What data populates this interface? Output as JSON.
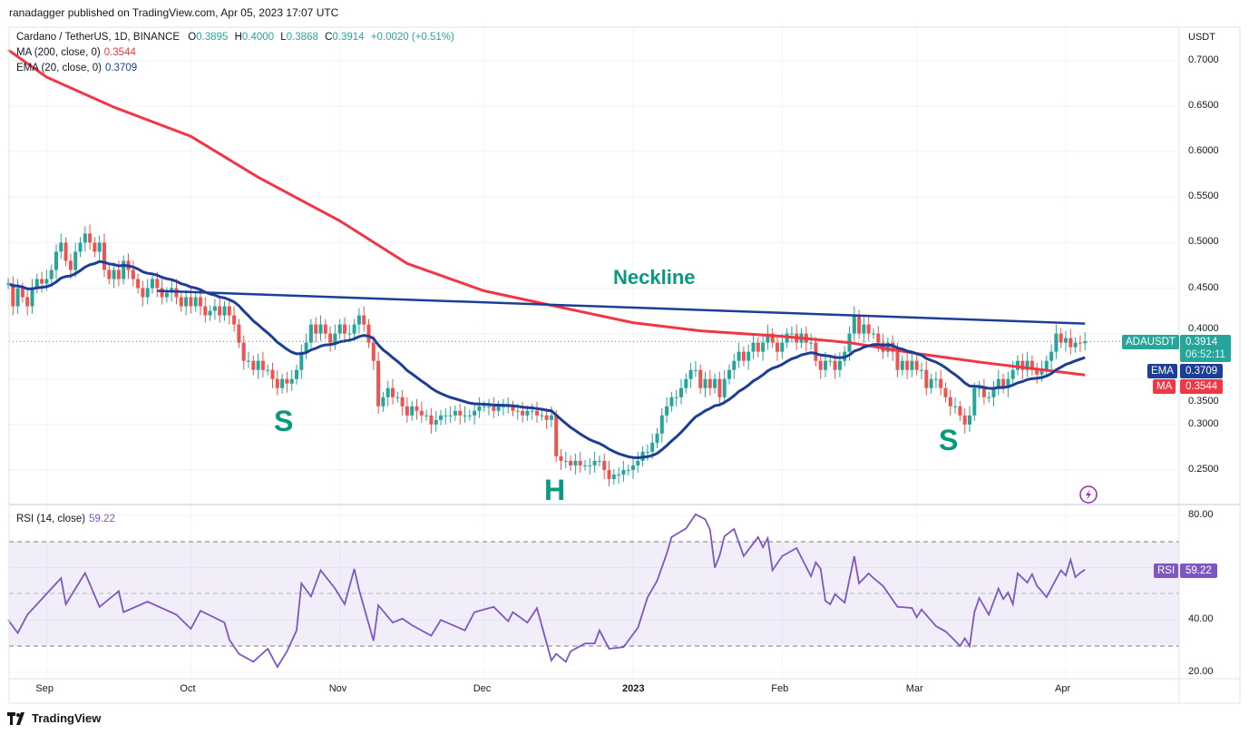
{
  "published": "ranadagger published on TradingView.com, Apr 05, 2023 17:07 UTC",
  "legend": {
    "symbol": "Cardano / TetherUS, 1D, BINANCE",
    "o_label": "O",
    "o": "0.3895",
    "h_label": "H",
    "h": "0.4000",
    "l_label": "L",
    "l": "0.3868",
    "c_label": "C",
    "c": "0.3914",
    "change": "+0.0020 (+0.51%)",
    "ma_label": "MA (200, close, 0)",
    "ma_value": "0.3544",
    "ema_label": "EMA (20, close, 0)",
    "ema_value": "0.3709",
    "rsi_label": "RSI (14, close)",
    "rsi_value": "59.22"
  },
  "price_axis": {
    "unit": "USDT",
    "ticks": [
      "0.7000",
      "0.6500",
      "0.6000",
      "0.5500",
      "0.5000",
      "0.4500",
      "0.4000",
      "0.3500",
      "0.3000",
      "0.2500"
    ]
  },
  "rsi_axis": {
    "ticks": [
      "80.00",
      "40.00",
      "20.00"
    ]
  },
  "time_axis": {
    "ticks": [
      "Sep",
      "Oct",
      "Nov",
      "Dec",
      "2023",
      "Feb",
      "Mar",
      "Apr"
    ]
  },
  "tags": {
    "symbol": "ADAUSDT",
    "price": "0.3914",
    "countdown": "06:52:11",
    "ema_label": "EMA",
    "ema": "0.3709",
    "ma_label": "MA",
    "ma": "0.3544",
    "rsi_label": "RSI",
    "rsi": "59.22"
  },
  "annotations": {
    "neckline": "Neckline",
    "left_shoulder": "S",
    "head": "H",
    "right_shoulder": "S"
  },
  "footer": {
    "brand": "TradingView"
  },
  "colors": {
    "up": "#26a69a",
    "down": "#ef5350",
    "ema": "#1c3f95",
    "ma": "#f23645",
    "rsi": "#7e57c2",
    "annotation": "#089981",
    "neckline": "#1c3f95"
  },
  "chart_data": [
    {
      "type": "candlestick",
      "title": "Cardano / TetherUS, 1D, BINANCE",
      "ylabel": "USDT",
      "ylim": [
        0.22,
        0.72
      ],
      "grid": true,
      "candles_by_month": [
        {
          "month": "2022-08",
          "start_day": 24,
          "closes": [
            0.455,
            0.43,
            0.45,
            0.44,
            0.43,
            0.45,
            0.46,
            0.455
          ]
        },
        {
          "month": "2022-09",
          "start_day": 1,
          "closes": [
            0.46,
            0.47,
            0.49,
            0.5,
            0.48,
            0.47,
            0.49,
            0.5,
            0.51,
            0.5,
            0.49,
            0.5,
            0.47,
            0.46,
            0.47,
            0.46,
            0.48,
            0.47,
            0.46,
            0.45,
            0.44,
            0.45,
            0.46,
            0.45,
            0.44,
            0.445,
            0.45,
            0.44,
            0.43,
            0.44
          ]
        },
        {
          "month": "2022-10",
          "start_day": 1,
          "closes": [
            0.43,
            0.44,
            0.43,
            0.42,
            0.425,
            0.43,
            0.42,
            0.43,
            0.42,
            0.41,
            0.39,
            0.37,
            0.37,
            0.36,
            0.37,
            0.36,
            0.36,
            0.35,
            0.34,
            0.35,
            0.345,
            0.35,
            0.36,
            0.38,
            0.39,
            0.41,
            0.4,
            0.41,
            0.4,
            0.39,
            0.4
          ]
        },
        {
          "month": "2022-11",
          "start_day": 1,
          "closes": [
            0.41,
            0.4,
            0.4,
            0.41,
            0.42,
            0.41,
            0.39,
            0.37,
            0.32,
            0.33,
            0.34,
            0.33,
            0.33,
            0.32,
            0.31,
            0.32,
            0.315,
            0.31,
            0.31,
            0.3,
            0.305,
            0.31,
            0.31,
            0.31,
            0.315,
            0.31,
            0.31,
            0.31,
            0.315,
            0.32
          ]
        },
        {
          "month": "2022-12",
          "start_day": 1,
          "closes": [
            0.32,
            0.32,
            0.315,
            0.32,
            0.32,
            0.32,
            0.315,
            0.315,
            0.31,
            0.315,
            0.315,
            0.31,
            0.31,
            0.305,
            0.31,
            0.265,
            0.26,
            0.26,
            0.255,
            0.26,
            0.255,
            0.255,
            0.255,
            0.26,
            0.26,
            0.25,
            0.24,
            0.245,
            0.245,
            0.25,
            0.25
          ]
        },
        {
          "month": "2023-01",
          "start_day": 1,
          "closes": [
            0.255,
            0.26,
            0.27,
            0.27,
            0.28,
            0.29,
            0.31,
            0.32,
            0.33,
            0.33,
            0.34,
            0.35,
            0.36,
            0.36,
            0.34,
            0.35,
            0.34,
            0.35,
            0.33,
            0.35,
            0.36,
            0.37,
            0.38,
            0.37,
            0.38,
            0.39,
            0.38,
            0.39,
            0.4,
            0.39,
            0.38
          ]
        },
        {
          "month": "2023-02",
          "start_day": 1,
          "closes": [
            0.39,
            0.4,
            0.4,
            0.39,
            0.4,
            0.39,
            0.39,
            0.37,
            0.36,
            0.37,
            0.37,
            0.36,
            0.37,
            0.38,
            0.4,
            0.42,
            0.4,
            0.41,
            0.4,
            0.4,
            0.39,
            0.38,
            0.39,
            0.38,
            0.36,
            0.37,
            0.36,
            0.37
          ]
        },
        {
          "month": "2023-03",
          "start_day": 1,
          "closes": [
            0.36,
            0.36,
            0.34,
            0.35,
            0.35,
            0.34,
            0.33,
            0.32,
            0.32,
            0.31,
            0.3,
            0.31,
            0.34,
            0.34,
            0.33,
            0.33,
            0.34,
            0.35,
            0.34,
            0.35,
            0.36,
            0.37,
            0.36,
            0.37,
            0.36,
            0.355,
            0.36,
            0.37,
            0.38,
            0.4,
            0.39
          ]
        },
        {
          "month": "2023-04",
          "start_day": 1,
          "closes": [
            0.395,
            0.385,
            0.39,
            0.3895,
            0.3914
          ]
        }
      ],
      "ma200": [
        [
          "2022-08-24",
          0.712
        ],
        [
          "2022-09-01",
          0.682
        ],
        [
          "2022-09-15",
          0.649
        ],
        [
          "2022-10-01",
          0.617
        ],
        [
          "2022-10-15",
          0.572
        ],
        [
          "2022-11-01",
          0.524
        ],
        [
          "2022-11-15",
          0.477
        ],
        [
          "2022-12-01",
          0.447
        ],
        [
          "2022-12-15",
          0.431
        ],
        [
          "2023-01-01",
          0.412
        ],
        [
          "2023-01-15",
          0.403
        ],
        [
          "2023-02-01",
          0.397
        ],
        [
          "2023-02-15",
          0.39
        ],
        [
          "2023-03-01",
          0.378
        ],
        [
          "2023-03-15",
          0.368
        ],
        [
          "2023-04-05",
          0.3544
        ]
      ],
      "neckline": [
        [
          "2022-09-24",
          0.447
        ],
        [
          "2023-04-05",
          0.411
        ]
      ],
      "last_price": 0.3914
    },
    {
      "type": "line",
      "title": "RSI (14, close)",
      "ylim": [
        18,
        84
      ],
      "bands": {
        "upper": 70,
        "middle": 50,
        "lower": 30
      },
      "points": [
        [
          "2022-08-24",
          40
        ],
        [
          "2022-08-26",
          35
        ],
        [
          "2022-08-28",
          42
        ],
        [
          "2022-09-04",
          56
        ],
        [
          "2022-09-05",
          46
        ],
        [
          "2022-09-09",
          58
        ],
        [
          "2022-09-12",
          45
        ],
        [
          "2022-09-16",
          51
        ],
        [
          "2022-09-17",
          43
        ],
        [
          "2022-09-22",
          47
        ],
        [
          "2022-09-28",
          42
        ],
        [
          "2022-10-01",
          36.6
        ],
        [
          "2022-10-03",
          43.5
        ],
        [
          "2022-10-08",
          39
        ],
        [
          "2022-10-09",
          32.5
        ],
        [
          "2022-10-11",
          27
        ],
        [
          "2022-10-14",
          24
        ],
        [
          "2022-10-17",
          29
        ],
        [
          "2022-10-19",
          22
        ],
        [
          "2022-10-21",
          28
        ],
        [
          "2022-10-23",
          36
        ],
        [
          "2022-10-24",
          54
        ],
        [
          "2022-10-26",
          49
        ],
        [
          "2022-10-28",
          59
        ],
        [
          "2022-10-31",
          52
        ],
        [
          "2022-11-02",
          46
        ],
        [
          "2022-11-04",
          59.5
        ],
        [
          "2022-11-05",
          51.5
        ],
        [
          "2022-11-08",
          32
        ],
        [
          "2022-11-09",
          45.6
        ],
        [
          "2022-11-12",
          39
        ],
        [
          "2022-11-14",
          40.5
        ],
        [
          "2022-11-16",
          38
        ],
        [
          "2022-11-20",
          34
        ],
        [
          "2022-11-22",
          40
        ],
        [
          "2022-11-27",
          36
        ],
        [
          "2022-11-29",
          43
        ],
        [
          "2022-12-03",
          45
        ],
        [
          "2022-12-06",
          39.5
        ],
        [
          "2022-12-07",
          43
        ],
        [
          "2022-12-10",
          39
        ],
        [
          "2022-12-12",
          44.5
        ],
        [
          "2022-12-15",
          24.5
        ],
        [
          "2022-12-16",
          27
        ],
        [
          "2022-12-18",
          24
        ],
        [
          "2022-12-19",
          28
        ],
        [
          "2022-12-22",
          31
        ],
        [
          "2022-12-24",
          31
        ],
        [
          "2022-12-25",
          36
        ],
        [
          "2022-12-27",
          29
        ],
        [
          "2022-12-30",
          29.6
        ],
        [
          "2023-01-02",
          37
        ],
        [
          "2023-01-04",
          48.6
        ],
        [
          "2023-01-06",
          55
        ],
        [
          "2023-01-08",
          65.4
        ],
        [
          "2023-01-09",
          71.7
        ],
        [
          "2023-01-12",
          75
        ],
        [
          "2023-01-14",
          80.4
        ],
        [
          "2023-01-16",
          78.5
        ],
        [
          "2023-01-17",
          74.5
        ],
        [
          "2023-01-18",
          60
        ],
        [
          "2023-01-19",
          64.7
        ],
        [
          "2023-01-20",
          72
        ],
        [
          "2023-01-22",
          74.8
        ],
        [
          "2023-01-24",
          64.4
        ],
        [
          "2023-01-27",
          71.7
        ],
        [
          "2023-01-28",
          67.8
        ],
        [
          "2023-01-29",
          71.3
        ],
        [
          "2023-01-30",
          59
        ],
        [
          "2023-02-01",
          64.4
        ],
        [
          "2023-02-04",
          67.5
        ],
        [
          "2023-02-07",
          56.7
        ],
        [
          "2023-02-08",
          62
        ],
        [
          "2023-02-09",
          59.6
        ],
        [
          "2023-02-10",
          47.3
        ],
        [
          "2023-02-11",
          46
        ],
        [
          "2023-02-12",
          49.8
        ],
        [
          "2023-02-14",
          46.6
        ],
        [
          "2023-02-16",
          64.4
        ],
        [
          "2023-02-17",
          54
        ],
        [
          "2023-02-19",
          57.8
        ],
        [
          "2023-02-20",
          56
        ],
        [
          "2023-02-22",
          53
        ],
        [
          "2023-02-25",
          45
        ],
        [
          "2023-02-28",
          44.6
        ],
        [
          "2023-03-01",
          41
        ],
        [
          "2023-03-02",
          44
        ],
        [
          "2023-03-05",
          37.6
        ],
        [
          "2023-03-07",
          35.6
        ],
        [
          "2023-03-09",
          32
        ],
        [
          "2023-03-10",
          30
        ],
        [
          "2023-03-11",
          33
        ],
        [
          "2023-03-12",
          30
        ],
        [
          "2023-03-13",
          43
        ],
        [
          "2023-03-14",
          48.4
        ],
        [
          "2023-03-16",
          42
        ],
        [
          "2023-03-18",
          52
        ],
        [
          "2023-03-19",
          48
        ],
        [
          "2023-03-20",
          50.5
        ],
        [
          "2023-03-21",
          46
        ],
        [
          "2023-03-22",
          57.8
        ],
        [
          "2023-03-24",
          54.3
        ],
        [
          "2023-03-25",
          57.5
        ],
        [
          "2023-03-26",
          53
        ],
        [
          "2023-03-27",
          51
        ],
        [
          "2023-03-28",
          48.7
        ],
        [
          "2023-03-30",
          55.7
        ],
        [
          "2023-03-31",
          59
        ],
        [
          "2023-04-01",
          57
        ],
        [
          "2023-04-02",
          63
        ],
        [
          "2023-04-03",
          56.4
        ],
        [
          "2023-04-04",
          58
        ],
        [
          "2023-04-05",
          59.22
        ]
      ]
    }
  ]
}
